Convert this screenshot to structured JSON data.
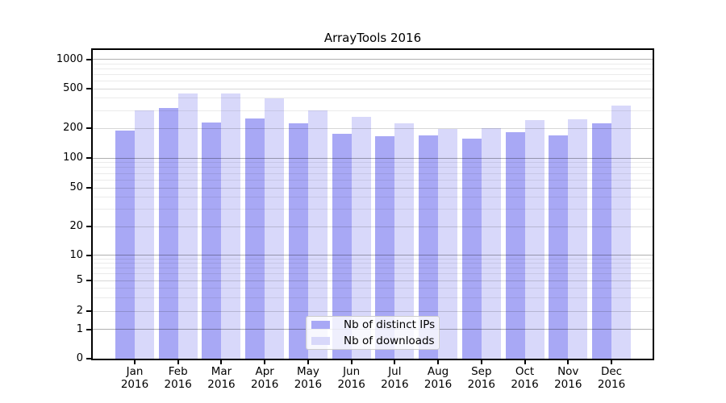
{
  "figure": {
    "background": "#ffffff"
  },
  "chart_data": {
    "type": "bar",
    "title": "ArrayTools 2016",
    "categories": [
      "Jan",
      "Feb",
      "Mar",
      "Apr",
      "May",
      "Jun",
      "Jul",
      "Aug",
      "Sep",
      "Oct",
      "Nov",
      "Dec"
    ],
    "year_label": "2016",
    "series": [
      {
        "name": "Nb of distinct IPs",
        "color": "#a8a8f5",
        "values": [
          190,
          320,
          230,
          250,
          222,
          175,
          166,
          170,
          157,
          181,
          170,
          222
        ]
      },
      {
        "name": "Nb of downloads",
        "color": "#d8d8fa",
        "values": [
          300,
          445,
          445,
          400,
          300,
          260,
          222,
          196,
          200,
          240,
          245,
          335
        ]
      }
    ],
    "xlabel": "",
    "ylabel": "",
    "yscale": "symlog",
    "yticks": [
      1000,
      500,
      200,
      100,
      50,
      20,
      10,
      5,
      2,
      1,
      0
    ],
    "ylim": [
      0,
      1000
    ],
    "grid": "horizontal major and minor gridlines",
    "legend_position": "lower center inside plot",
    "grid_major_color": "#b0b0b0",
    "grid_minor_color": "#ebebeb",
    "axis_color": "#000000"
  }
}
